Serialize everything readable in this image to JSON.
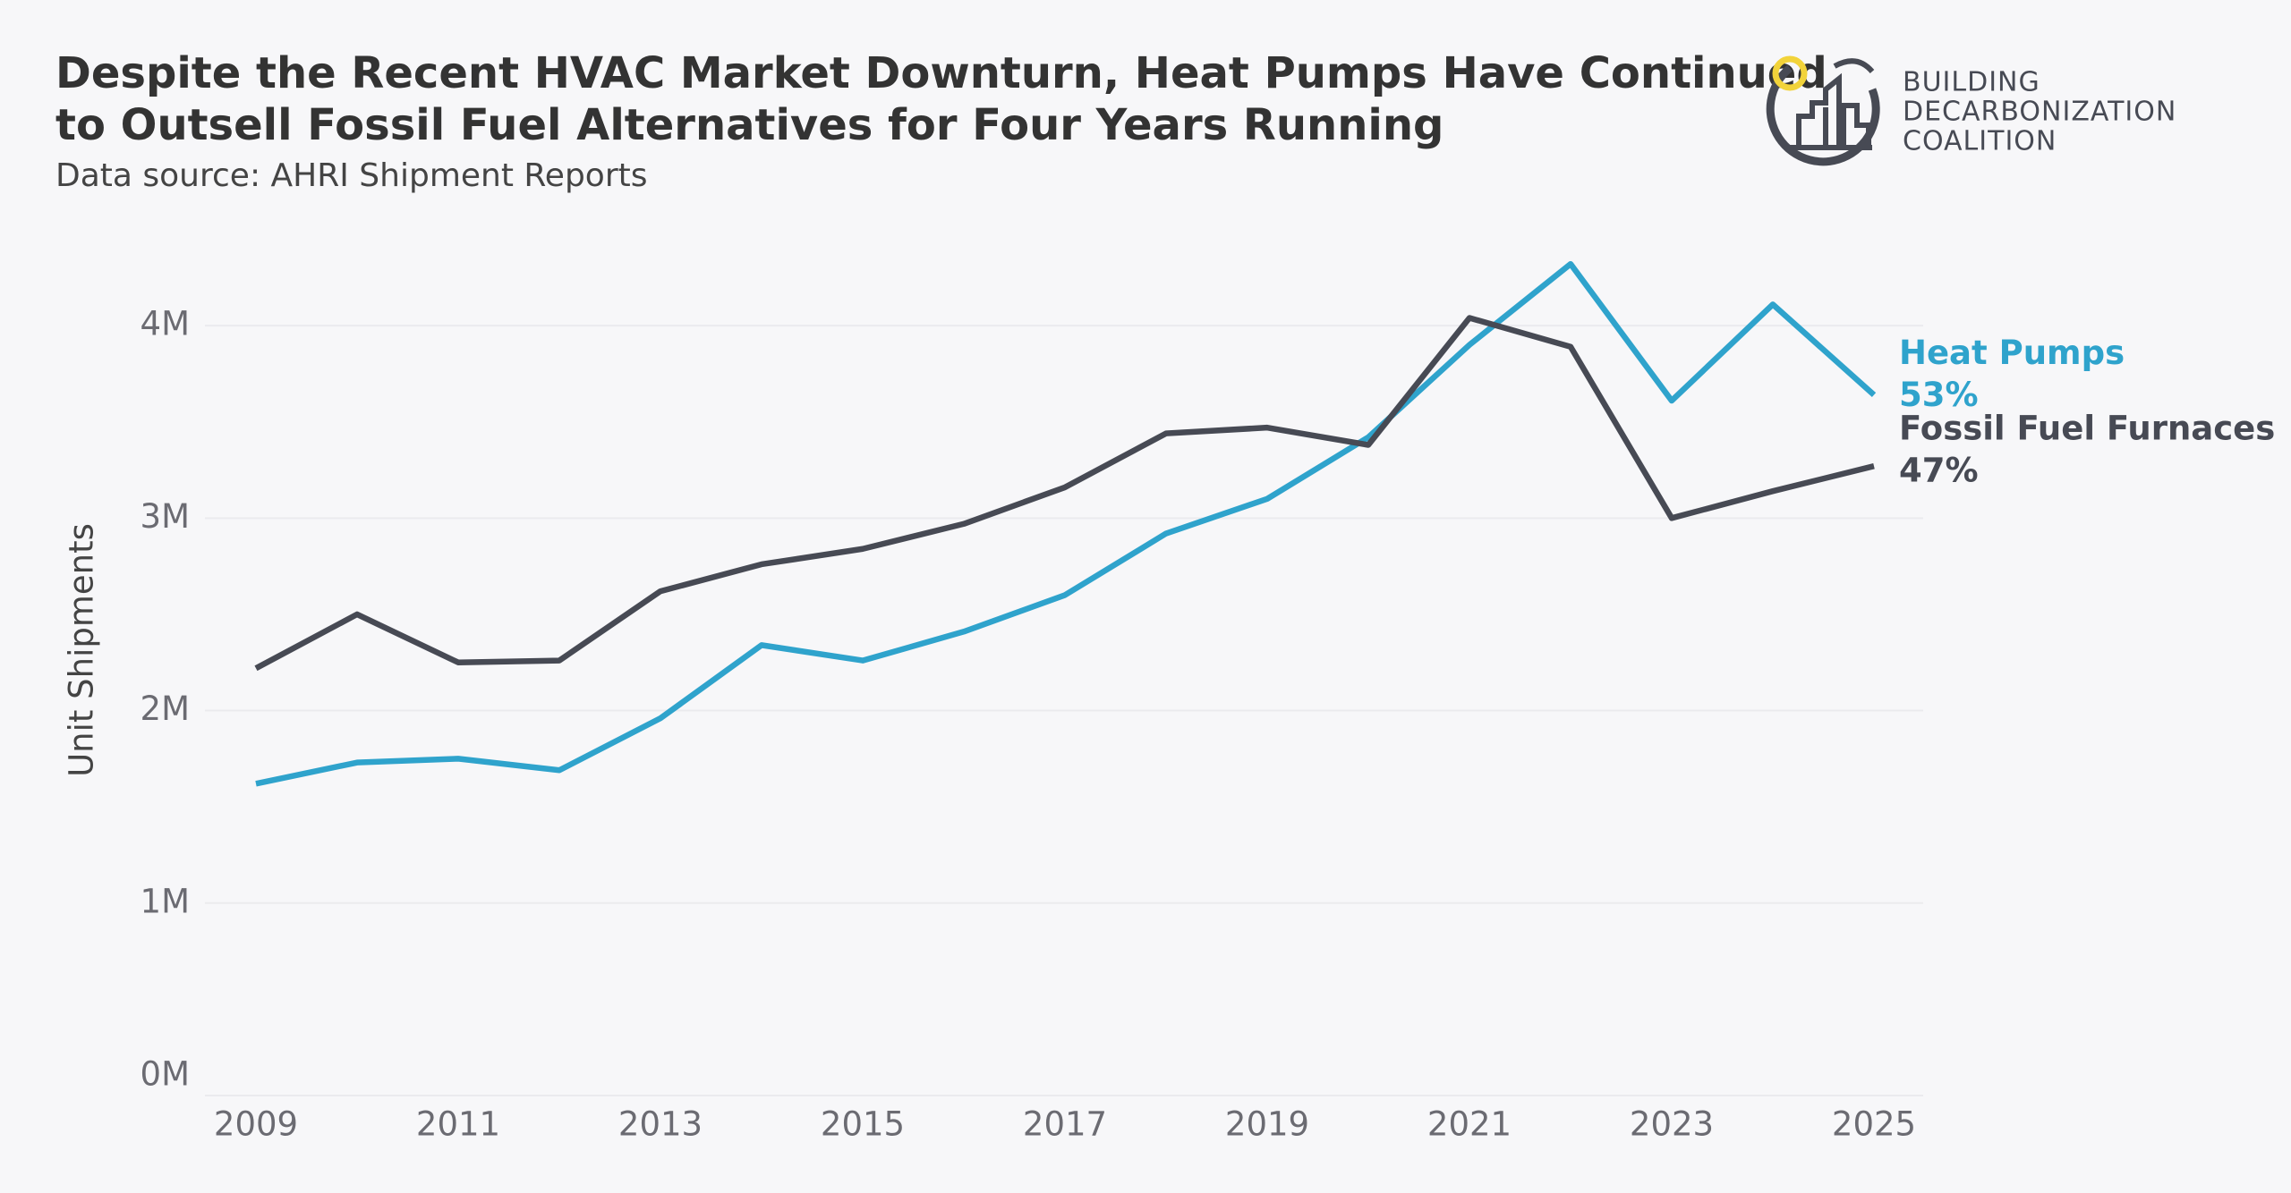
{
  "chart_data": {
    "type": "line",
    "title": [
      "Despite the Recent HVAC Market Downturn, Heat Pumps Have Continued",
      "to Outsell Fossil Fuel Alternatives for Four Years Running"
    ],
    "subtitle": "Data source: AHRI Shipment Reports",
    "y_label": "Unit Shipments",
    "x": [
      2009,
      2010,
      2011,
      2012,
      2013,
      2014,
      2015,
      2016,
      2017,
      2018,
      2019,
      2020,
      2021,
      2022,
      2023,
      2024,
      2025
    ],
    "series": [
      {
        "name": "Heat Pumps",
        "end_label": "53%",
        "color": "#2fa3cc",
        "values": [
          1620000,
          1730000,
          1750000,
          1690000,
          1960000,
          2340000,
          2260000,
          2410000,
          2600000,
          2920000,
          3100000,
          3420000,
          3900000,
          4320000,
          3610000,
          4110000,
          3640000
        ]
      },
      {
        "name": "Fossil Fuel Furnaces",
        "end_label": "47%",
        "color": "#474a54",
        "values": [
          2220000,
          2500000,
          2250000,
          2260000,
          2620000,
          2760000,
          2840000,
          2970000,
          3160000,
          3440000,
          3470000,
          3380000,
          4040000,
          3890000,
          3000000,
          3140000,
          3270000
        ]
      }
    ],
    "xlim": [
      2009,
      2025
    ],
    "xticks": [
      2009,
      2011,
      2013,
      2015,
      2017,
      2019,
      2021,
      2023,
      2025
    ],
    "ylim": [
      0,
      4400000
    ],
    "yticks": [
      {
        "value": 0,
        "label": "0M"
      },
      {
        "value": 1000000,
        "label": "1M"
      },
      {
        "value": 2000000,
        "label": "2M"
      },
      {
        "value": 3000000,
        "label": "3M"
      },
      {
        "value": 4000000,
        "label": "4M"
      }
    ],
    "grid": true
  },
  "logo": {
    "lines": [
      "BUILDING",
      "DECARBONIZATION",
      "COALITION"
    ]
  }
}
